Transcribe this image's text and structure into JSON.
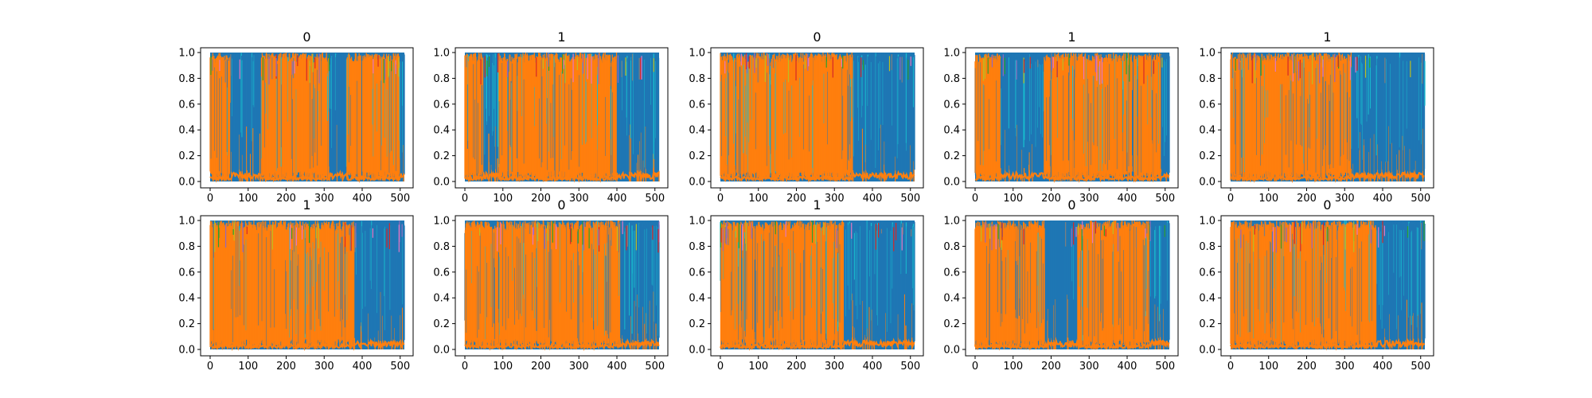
{
  "figure": {
    "colors": {
      "blue": "#1f77b4",
      "orange": "#ff7f0e",
      "cyan": "#17becf",
      "olive": "#bcbd22",
      "green": "#2ca02c",
      "red": "#d62728",
      "purple": "#9467bd",
      "pink": "#e377c2",
      "gray": "#7f7f7f"
    }
  },
  "chart_data": [
    {
      "type": "line",
      "title": "0",
      "xlim": [
        0,
        511
      ],
      "ylim": [
        0.0,
        1.0
      ],
      "xticks": [
        "0",
        "100",
        "200",
        "300",
        "400",
        "500"
      ],
      "yticks": [
        "0.0",
        "0.2",
        "0.4",
        "0.6",
        "0.8",
        "1.0"
      ],
      "grid": false,
      "legend": "none",
      "dominant_class": [
        {
          "x_start": 0,
          "x_end": 55,
          "class": "orange"
        },
        {
          "x_start": 55,
          "x_end": 135,
          "class": "blue"
        },
        {
          "x_start": 135,
          "x_end": 315,
          "class": "orange"
        },
        {
          "x_start": 315,
          "x_end": 360,
          "class": "blue"
        },
        {
          "x_start": 360,
          "x_end": 500,
          "class": "orange"
        },
        {
          "x_start": 500,
          "x_end": 511,
          "class": "blue"
        }
      ]
    },
    {
      "type": "line",
      "title": "1",
      "xlim": [
        0,
        511
      ],
      "ylim": [
        0.0,
        1.0
      ],
      "xticks": [
        "0",
        "100",
        "200",
        "300",
        "400",
        "500"
      ],
      "yticks": [
        "0.0",
        "0.2",
        "0.4",
        "0.6",
        "0.8",
        "1.0"
      ],
      "grid": false,
      "legend": "none",
      "dominant_class": [
        {
          "x_start": 0,
          "x_end": 50,
          "class": "orange"
        },
        {
          "x_start": 50,
          "x_end": 90,
          "class": "blue"
        },
        {
          "x_start": 90,
          "x_end": 400,
          "class": "orange"
        },
        {
          "x_start": 400,
          "x_end": 511,
          "class": "blue"
        }
      ]
    },
    {
      "type": "line",
      "title": "0",
      "xlim": [
        0,
        511
      ],
      "ylim": [
        0.0,
        1.0
      ],
      "xticks": [
        "0",
        "100",
        "200",
        "300",
        "400",
        "500"
      ],
      "yticks": [
        "0.0",
        "0.2",
        "0.4",
        "0.6",
        "0.8",
        "1.0"
      ],
      "grid": false,
      "legend": "none",
      "dominant_class": [
        {
          "x_start": 0,
          "x_end": 350,
          "class": "orange"
        },
        {
          "x_start": 350,
          "x_end": 511,
          "class": "blue"
        }
      ]
    },
    {
      "type": "line",
      "title": "1",
      "xlim": [
        0,
        511
      ],
      "ylim": [
        0.0,
        1.0
      ],
      "xticks": [
        "0",
        "100",
        "200",
        "300",
        "400",
        "500"
      ],
      "yticks": [
        "0.0",
        "0.2",
        "0.4",
        "0.6",
        "0.8",
        "1.0"
      ],
      "grid": false,
      "legend": "none",
      "dominant_class": [
        {
          "x_start": 0,
          "x_end": 70,
          "class": "orange"
        },
        {
          "x_start": 70,
          "x_end": 180,
          "class": "blue"
        },
        {
          "x_start": 180,
          "x_end": 490,
          "class": "orange"
        },
        {
          "x_start": 490,
          "x_end": 511,
          "class": "blue"
        }
      ]
    },
    {
      "type": "line",
      "title": "1",
      "xlim": [
        0,
        511
      ],
      "ylim": [
        0.0,
        1.0
      ],
      "xticks": [
        "0",
        "100",
        "200",
        "300",
        "400",
        "500"
      ],
      "yticks": [
        "0.0",
        "0.2",
        "0.4",
        "0.6",
        "0.8",
        "1.0"
      ],
      "grid": false,
      "legend": "none",
      "dominant_class": [
        {
          "x_start": 0,
          "x_end": 320,
          "class": "orange"
        },
        {
          "x_start": 320,
          "x_end": 511,
          "class": "blue"
        }
      ]
    },
    {
      "type": "line",
      "title": "1",
      "xlim": [
        0,
        511
      ],
      "ylim": [
        0.0,
        1.0
      ],
      "xticks": [
        "0",
        "100",
        "200",
        "300",
        "400",
        "500"
      ],
      "yticks": [
        "0.0",
        "0.2",
        "0.4",
        "0.6",
        "0.8",
        "1.0"
      ],
      "grid": false,
      "legend": "none",
      "dominant_class": [
        {
          "x_start": 0,
          "x_end": 380,
          "class": "orange"
        },
        {
          "x_start": 380,
          "x_end": 511,
          "class": "blue"
        }
      ]
    },
    {
      "type": "line",
      "title": "0",
      "xlim": [
        0,
        511
      ],
      "ylim": [
        0.0,
        1.0
      ],
      "xticks": [
        "0",
        "100",
        "200",
        "300",
        "400",
        "500"
      ],
      "yticks": [
        "0.0",
        "0.2",
        "0.4",
        "0.6",
        "0.8",
        "1.0"
      ],
      "grid": false,
      "legend": "none",
      "dominant_class": [
        {
          "x_start": 0,
          "x_end": 410,
          "class": "orange"
        },
        {
          "x_start": 410,
          "x_end": 511,
          "class": "blue"
        }
      ]
    },
    {
      "type": "line",
      "title": "1",
      "xlim": [
        0,
        511
      ],
      "ylim": [
        0.0,
        1.0
      ],
      "xticks": [
        "0",
        "100",
        "200",
        "300",
        "400",
        "500"
      ],
      "yticks": [
        "0.0",
        "0.2",
        "0.4",
        "0.6",
        "0.8",
        "1.0"
      ],
      "grid": false,
      "legend": "none",
      "dominant_class": [
        {
          "x_start": 0,
          "x_end": 325,
          "class": "orange"
        },
        {
          "x_start": 325,
          "x_end": 511,
          "class": "blue"
        }
      ]
    },
    {
      "type": "line",
      "title": "0",
      "xlim": [
        0,
        511
      ],
      "ylim": [
        0.0,
        1.0
      ],
      "xticks": [
        "0",
        "100",
        "200",
        "300",
        "400",
        "500"
      ],
      "yticks": [
        "0.0",
        "0.2",
        "0.4",
        "0.6",
        "0.8",
        "1.0"
      ],
      "grid": false,
      "legend": "none",
      "dominant_class": [
        {
          "x_start": 0,
          "x_end": 185,
          "class": "orange"
        },
        {
          "x_start": 185,
          "x_end": 270,
          "class": "blue"
        },
        {
          "x_start": 270,
          "x_end": 460,
          "class": "orange"
        },
        {
          "x_start": 460,
          "x_end": 511,
          "class": "blue"
        }
      ]
    },
    {
      "type": "line",
      "title": "0",
      "xlim": [
        0,
        511
      ],
      "ylim": [
        0.0,
        1.0
      ],
      "xticks": [
        "0",
        "100",
        "200",
        "300",
        "400",
        "500"
      ],
      "yticks": [
        "0.0",
        "0.2",
        "0.4",
        "0.6",
        "0.8",
        "1.0"
      ],
      "grid": false,
      "legend": "none",
      "dominant_class": [
        {
          "x_start": 0,
          "x_end": 385,
          "class": "orange"
        },
        {
          "x_start": 385,
          "x_end": 511,
          "class": "blue"
        }
      ]
    }
  ]
}
